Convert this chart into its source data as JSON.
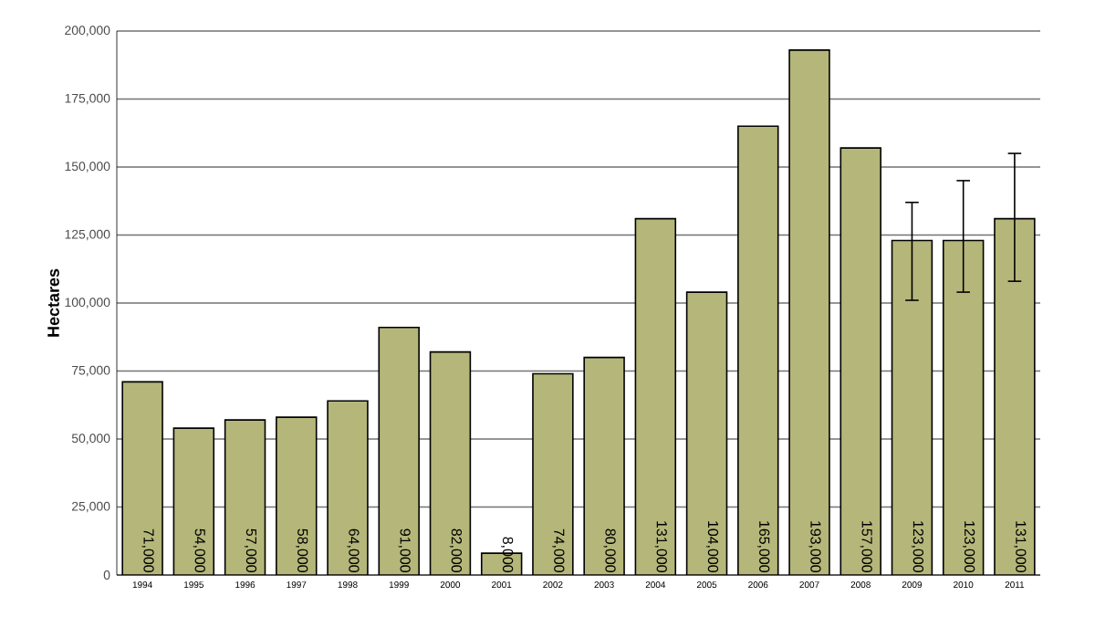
{
  "chart_data": {
    "type": "bar",
    "ylabel": "Hectares",
    "categories": [
      "1994",
      "1995",
      "1996",
      "1997",
      "1998",
      "1999",
      "2000",
      "2001",
      "2002",
      "2003",
      "2004",
      "2005",
      "2006",
      "2007",
      "2008",
      "2009",
      "2010",
      "2011"
    ],
    "values": [
      71000,
      54000,
      57000,
      58000,
      64000,
      91000,
      82000,
      8000,
      74000,
      80000,
      131000,
      104000,
      165000,
      193000,
      157000,
      123000,
      123000,
      131000
    ],
    "value_labels": [
      "71,000",
      "54,000",
      "57,000",
      "58,000",
      "64,000",
      "91,000",
      "82,000",
      "8,000",
      "74,000",
      "80,000",
      "131,000",
      "104,000",
      "165,000",
      "193,000",
      "157,000",
      "123,000",
      "123,000",
      "131,000"
    ],
    "errors": [
      null,
      null,
      null,
      null,
      null,
      null,
      null,
      null,
      null,
      null,
      null,
      null,
      null,
      null,
      null,
      [
        101000,
        137000
      ],
      [
        104000,
        145000
      ],
      [
        108000,
        155000
      ]
    ],
    "color": "#b5b77a",
    "ylim": [
      0,
      200000
    ],
    "yticks": [
      {
        "value": 0,
        "label": "0"
      },
      {
        "value": 25000,
        "label": "25,000"
      },
      {
        "value": 50000,
        "label": "50,000"
      },
      {
        "value": 75000,
        "label": "75,000"
      },
      {
        "value": 100000,
        "label": "100,000"
      },
      {
        "value": 125000,
        "label": "125,000"
      },
      {
        "value": 150000,
        "label": "150,000"
      },
      {
        "value": 175000,
        "label": "175,000"
      },
      {
        "value": 200000,
        "label": "200,000"
      }
    ],
    "grid": "y"
  }
}
